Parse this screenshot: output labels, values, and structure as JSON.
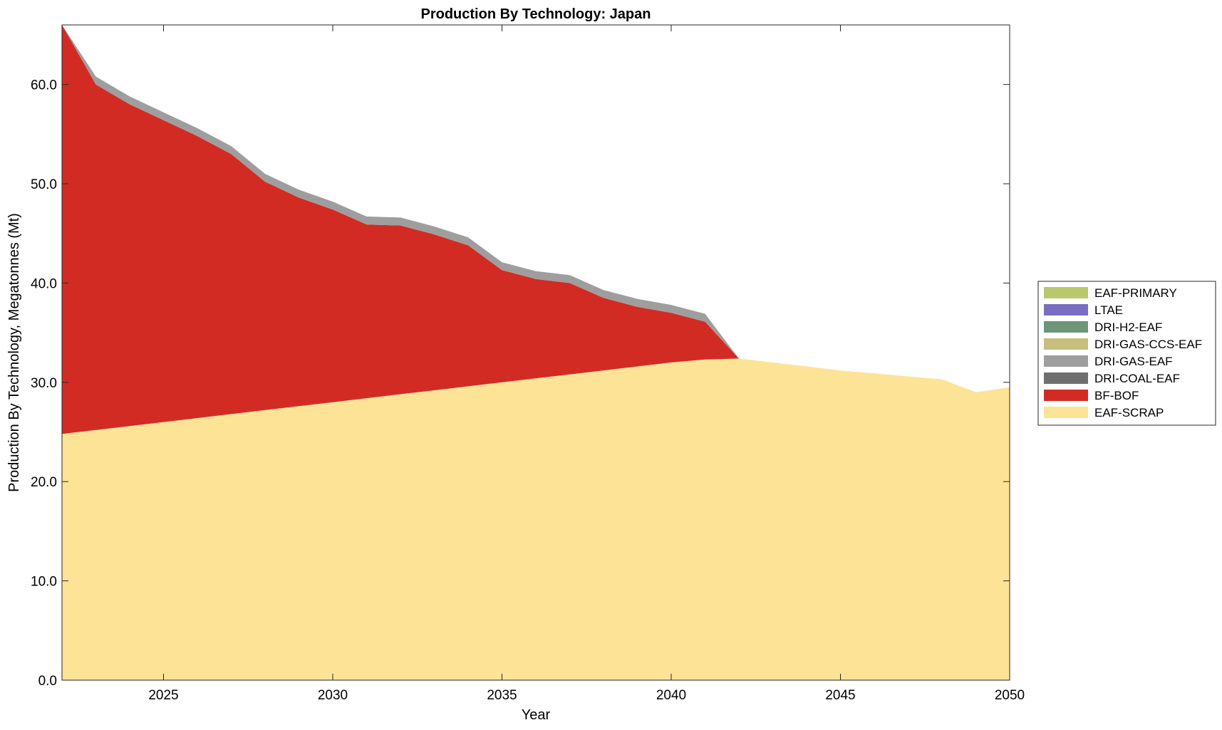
{
  "chart_data": {
    "type": "area",
    "stacked": true,
    "title": "Production By Technology: Japan",
    "xlabel": "Year",
    "ylabel": "Production By Technology, Megatonnes (Mt)",
    "xlim": [
      2022,
      2050
    ],
    "ylim": [
      0,
      66
    ],
    "xticks": [
      2025,
      2030,
      2035,
      2040,
      2045,
      2050
    ],
    "yticks": [
      0,
      10,
      20,
      30,
      40,
      50,
      60
    ],
    "ytick_labels": [
      "0.0",
      "10.0",
      "20.0",
      "30.0",
      "40.0",
      "50.0",
      "60.0"
    ],
    "grid": false,
    "legend_position": "right",
    "x": [
      2022,
      2023,
      2024,
      2025,
      2026,
      2027,
      2028,
      2029,
      2030,
      2031,
      2032,
      2033,
      2034,
      2035,
      2036,
      2037,
      2038,
      2039,
      2040,
      2041,
      2042,
      2043,
      2044,
      2045,
      2046,
      2047,
      2048,
      2049,
      2050
    ],
    "series": [
      {
        "name": "EAF-SCRAP",
        "color": "#FDE396",
        "values": [
          24.8,
          25.2,
          25.6,
          26.0,
          26.4,
          26.8,
          27.2,
          27.6,
          28.0,
          28.4,
          28.8,
          29.2,
          29.6,
          30.0,
          30.4,
          30.8,
          31.2,
          31.6,
          32.0,
          32.3,
          32.4,
          32.0,
          31.6,
          31.2,
          30.9,
          30.6,
          30.3,
          29.0,
          29.5
        ]
      },
      {
        "name": "BF-BOF",
        "color": "#D22B24",
        "values": [
          41.2,
          34.8,
          32.4,
          30.4,
          28.4,
          26.2,
          23.0,
          21.0,
          19.4,
          17.5,
          17.0,
          15.7,
          14.2,
          11.3,
          10.0,
          9.2,
          7.3,
          6.0,
          5.0,
          3.8,
          0,
          0,
          0,
          0,
          0,
          0,
          0,
          0,
          0
        ]
      },
      {
        "name": "DRI-COAL-EAF",
        "color": "#6F6F6F",
        "values": [
          0,
          0,
          0,
          0,
          0,
          0,
          0,
          0,
          0,
          0,
          0,
          0,
          0,
          0,
          0,
          0,
          0,
          0,
          0,
          0,
          0,
          0,
          0,
          0,
          0,
          0,
          0,
          0,
          0
        ]
      },
      {
        "name": "DRI-GAS-EAF",
        "color": "#9E9E9E",
        "values": [
          0,
          0.8,
          0.8,
          0.8,
          0.8,
          0.8,
          0.8,
          0.8,
          0.8,
          0.8,
          0.8,
          0.8,
          0.8,
          0.8,
          0.8,
          0.8,
          0.8,
          0.8,
          0.8,
          0.8,
          0,
          0,
          0,
          0,
          0,
          0,
          0,
          0,
          0
        ]
      },
      {
        "name": "DRI-GAS-CCS-EAF",
        "color": "#C7BE7E",
        "values": [
          0,
          0,
          0,
          0,
          0,
          0,
          0,
          0,
          0,
          0,
          0,
          0,
          0,
          0,
          0,
          0,
          0,
          0,
          0,
          0,
          0,
          0,
          0,
          0,
          0,
          0,
          0,
          0,
          0
        ]
      },
      {
        "name": "DRI-H2-EAF",
        "color": "#6E9479",
        "values": [
          0,
          0,
          0,
          0,
          0,
          0,
          0,
          0,
          0,
          0,
          0,
          0,
          0,
          0,
          0,
          0,
          0,
          0,
          0,
          0,
          0,
          0,
          0,
          0,
          0,
          0,
          0,
          0,
          0
        ]
      },
      {
        "name": "LTAE",
        "color": "#7A6EC2",
        "values": [
          0,
          0,
          0,
          0,
          0,
          0,
          0,
          0,
          0,
          0,
          0,
          0,
          0,
          0,
          0,
          0,
          0,
          0,
          0,
          0,
          0,
          0,
          0,
          0,
          0,
          0,
          0,
          0,
          0
        ]
      },
      {
        "name": "EAF-PRIMARY",
        "color": "#B9C86A",
        "values": [
          0,
          0,
          0,
          0,
          0,
          0,
          0,
          0,
          0,
          0,
          0,
          0,
          0,
          0,
          0,
          0,
          0,
          0,
          0,
          0,
          0,
          0,
          0,
          0,
          0,
          0,
          0,
          0,
          0
        ]
      }
    ],
    "legend_order": [
      "EAF-PRIMARY",
      "LTAE",
      "DRI-H2-EAF",
      "DRI-GAS-CCS-EAF",
      "DRI-GAS-EAF",
      "DRI-COAL-EAF",
      "BF-BOF",
      "EAF-SCRAP"
    ]
  }
}
